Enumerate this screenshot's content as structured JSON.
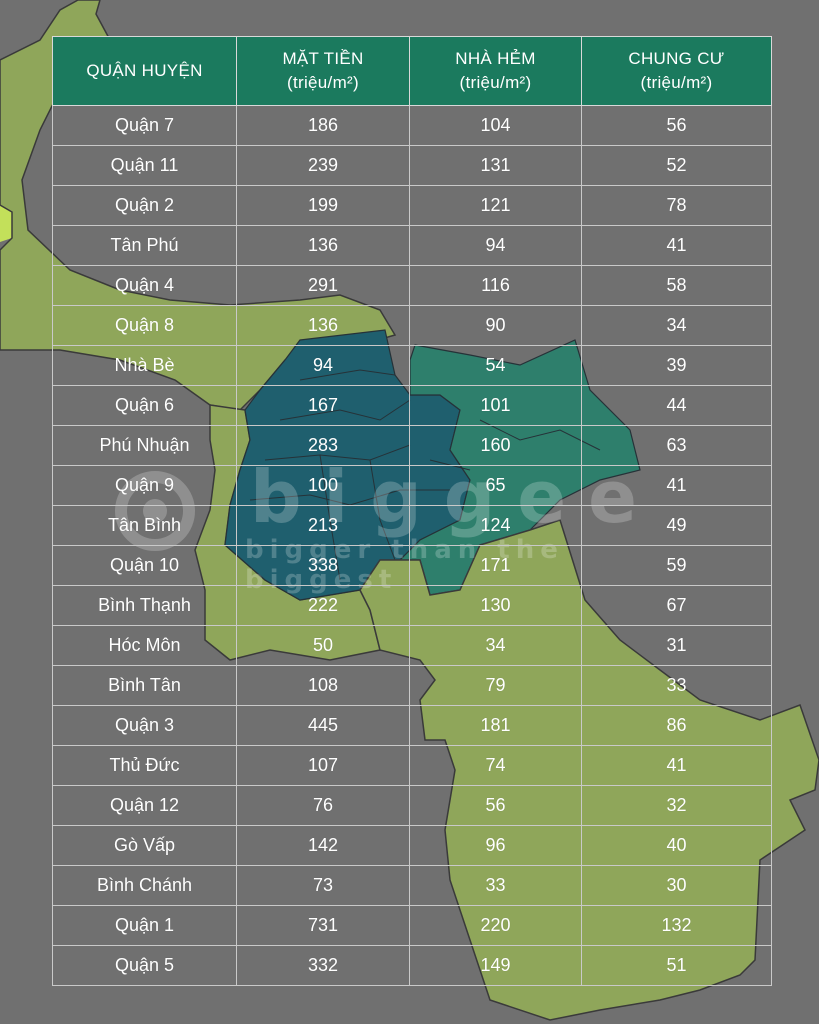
{
  "colors": {
    "background": "#707070",
    "header_fill": "#1b7a5e",
    "map_green": "#8fa65a",
    "map_teal_dark": "#1f5f6e",
    "map_teal": "#2e7f6c"
  },
  "watermark": {
    "brand": "biggee",
    "slogan": "bigger than the biggest"
  },
  "table": {
    "headers": {
      "district": "QUẬN HUYỆN",
      "frontage_line1": "MẶT TIỀN",
      "frontage_line2": "(triệu/m²)",
      "alley_line1": "NHÀ HẺM",
      "alley_line2": "(triệu/m²)",
      "apartment_line1": "CHUNG CƯ",
      "apartment_line2": "(triệu/m²)"
    },
    "rows": [
      {
        "district": "Quận 7",
        "frontage": "186",
        "alley": "104",
        "apartment": "56"
      },
      {
        "district": "Quận 11",
        "frontage": "239",
        "alley": "131",
        "apartment": "52"
      },
      {
        "district": "Quận 2",
        "frontage": "199",
        "alley": "121",
        "apartment": "78"
      },
      {
        "district": "Tân Phú",
        "frontage": "136",
        "alley": "94",
        "apartment": "41"
      },
      {
        "district": "Quận 4",
        "frontage": "291",
        "alley": "116",
        "apartment": "58"
      },
      {
        "district": "Quận 8",
        "frontage": "136",
        "alley": "90",
        "apartment": "34"
      },
      {
        "district": "Nhà Bè",
        "frontage": "94",
        "alley": "54",
        "apartment": "39"
      },
      {
        "district": "Quận 6",
        "frontage": "167",
        "alley": "101",
        "apartment": "44"
      },
      {
        "district": "Phú Nhuận",
        "frontage": "283",
        "alley": "160",
        "apartment": "63"
      },
      {
        "district": "Quận 9",
        "frontage": "100",
        "alley": "65",
        "apartment": "41"
      },
      {
        "district": "Tân Bình",
        "frontage": "213",
        "alley": "124",
        "apartment": "49"
      },
      {
        "district": "Quận 10",
        "frontage": "338",
        "alley": "171",
        "apartment": "59"
      },
      {
        "district": "Bình Thạnh",
        "frontage": "222",
        "alley": "130",
        "apartment": "67"
      },
      {
        "district": "Hóc Môn",
        "frontage": "50",
        "alley": "34",
        "apartment": "31"
      },
      {
        "district": "Bình Tân",
        "frontage": "108",
        "alley": "79",
        "apartment": "33"
      },
      {
        "district": "Quận 3",
        "frontage": "445",
        "alley": "181",
        "apartment": "86"
      },
      {
        "district": "Thủ Đức",
        "frontage": "107",
        "alley": "74",
        "apartment": "41"
      },
      {
        "district": "Quận 12",
        "frontage": "76",
        "alley": "56",
        "apartment": "32"
      },
      {
        "district": "Gò Vấp",
        "frontage": "142",
        "alley": "96",
        "apartment": "40"
      },
      {
        "district": "Bình Chánh",
        "frontage": "73",
        "alley": "33",
        "apartment": "30"
      },
      {
        "district": "Quận 1",
        "frontage": "731",
        "alley": "220",
        "apartment": "132"
      },
      {
        "district": "Quận 5",
        "frontage": "332",
        "alley": "149",
        "apartment": "51"
      }
    ]
  }
}
